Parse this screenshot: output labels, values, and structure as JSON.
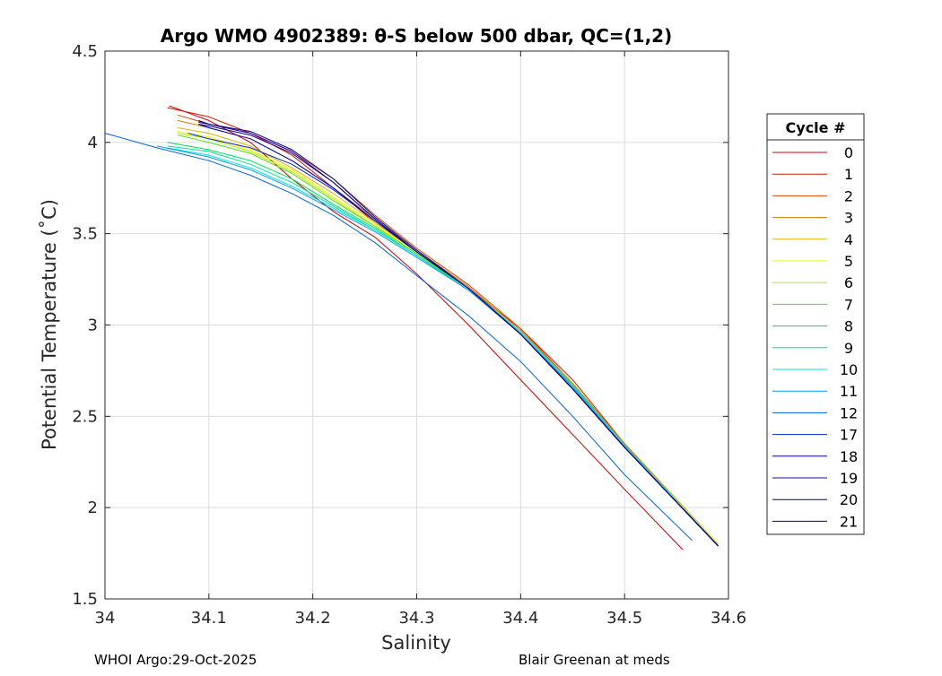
{
  "chart_data": {
    "type": "line",
    "title": "Argo WMO 4902389: θ-S below 500 dbar,  QC=(1,2)",
    "xlabel": "Salinity",
    "ylabel": "Potential Temperature (˚C)",
    "xlim": [
      34.0,
      34.6
    ],
    "ylim": [
      1.5,
      4.5
    ],
    "xticks": [
      34.0,
      34.1,
      34.2,
      34.3,
      34.4,
      34.5,
      34.6
    ],
    "xtick_labels": [
      "34",
      "34.1",
      "34.2",
      "34.3",
      "34.4",
      "34.5",
      "34.6"
    ],
    "yticks": [
      1.5,
      2.0,
      2.5,
      3.0,
      3.5,
      4.0,
      4.5
    ],
    "ytick_labels": [
      "1.5",
      "2",
      "2.5",
      "3",
      "3.5",
      "4",
      "4.5"
    ],
    "grid": true,
    "legend_title": "Cycle #",
    "legend_position": "outside-right",
    "series": [
      {
        "name": "0",
        "color": "#cc0000",
        "x": [
          34.062,
          34.1,
          34.14,
          34.18,
          34.22,
          34.26,
          34.3,
          34.35,
          34.4,
          34.45,
          34.5,
          34.556
        ],
        "y": [
          4.2,
          4.12,
          4.0,
          3.8,
          3.62,
          3.48,
          3.28,
          3.0,
          2.7,
          2.4,
          2.1,
          1.77
        ]
      },
      {
        "name": "1",
        "color": "#d91400",
        "x": [
          34.06,
          34.1,
          34.14,
          34.18,
          34.22,
          34.26,
          34.3,
          34.35,
          34.4,
          34.45,
          34.5,
          34.59
        ],
        "y": [
          4.19,
          4.14,
          4.05,
          3.93,
          3.75,
          3.56,
          3.4,
          3.2,
          2.98,
          2.7,
          2.35,
          1.79
        ]
      },
      {
        "name": "2",
        "color": "#e04000",
        "x": [
          34.07,
          34.1,
          34.14,
          34.18,
          34.22,
          34.26,
          34.3,
          34.35,
          34.4,
          34.45,
          34.5,
          34.59
        ],
        "y": [
          4.15,
          4.1,
          4.05,
          3.95,
          3.8,
          3.6,
          3.42,
          3.22,
          2.98,
          2.68,
          2.35,
          1.8
        ]
      },
      {
        "name": "3",
        "color": "#e07800",
        "x": [
          34.07,
          34.1,
          34.14,
          34.18,
          34.22,
          34.26,
          34.3,
          34.35,
          34.4,
          34.45,
          34.5,
          34.59
        ],
        "y": [
          4.12,
          4.08,
          4.02,
          3.9,
          3.75,
          3.58,
          3.41,
          3.21,
          2.97,
          2.68,
          2.35,
          1.8
        ]
      },
      {
        "name": "4",
        "color": "#e0b400",
        "x": [
          34.07,
          34.1,
          34.14,
          34.18,
          34.22,
          34.26,
          34.3,
          34.35,
          34.4,
          34.45,
          34.5,
          34.59
        ],
        "y": [
          4.08,
          4.05,
          3.98,
          3.86,
          3.72,
          3.56,
          3.4,
          3.2,
          2.96,
          2.67,
          2.34,
          1.8
        ]
      },
      {
        "name": "5",
        "color": "#f0f000",
        "x": [
          34.07,
          34.1,
          34.14,
          34.18,
          34.22,
          34.26,
          34.3,
          34.35,
          34.4,
          34.45,
          34.5,
          34.59
        ],
        "y": [
          4.06,
          4.03,
          3.96,
          3.85,
          3.7,
          3.55,
          3.39,
          3.2,
          2.96,
          2.67,
          2.34,
          1.8
        ]
      },
      {
        "name": "6",
        "color": "#b4f000",
        "x": [
          34.07,
          34.1,
          34.14,
          34.18,
          34.22,
          34.26,
          34.3,
          34.35,
          34.4,
          34.45,
          34.5,
          34.59
        ],
        "y": [
          4.05,
          4.02,
          3.95,
          3.84,
          3.69,
          3.54,
          3.39,
          3.2,
          2.96,
          2.67,
          2.34,
          1.79
        ]
      },
      {
        "name": "7",
        "color": "#50e000",
        "x": [
          34.07,
          34.1,
          34.14,
          34.18,
          34.22,
          34.26,
          34.3,
          34.35,
          34.4,
          34.45,
          34.5,
          34.59
        ],
        "y": [
          4.04,
          4.0,
          3.94,
          3.83,
          3.68,
          3.54,
          3.39,
          3.2,
          2.96,
          2.67,
          2.34,
          1.79
        ]
      },
      {
        "name": "8",
        "color": "#00e050",
        "x": [
          34.06,
          34.1,
          34.14,
          34.18,
          34.22,
          34.26,
          34.3,
          34.35,
          34.4,
          34.45,
          34.5,
          34.59
        ],
        "y": [
          4.0,
          3.96,
          3.9,
          3.8,
          3.66,
          3.53,
          3.38,
          3.2,
          2.96,
          2.67,
          2.34,
          1.79
        ]
      },
      {
        "name": "9",
        "color": "#00e0a0",
        "x": [
          34.06,
          34.1,
          34.14,
          34.18,
          34.22,
          34.26,
          34.3,
          34.35,
          34.4,
          34.45,
          34.5,
          34.59
        ],
        "y": [
          3.98,
          3.95,
          3.88,
          3.78,
          3.65,
          3.52,
          3.38,
          3.19,
          2.96,
          2.67,
          2.34,
          1.79
        ]
      },
      {
        "name": "10",
        "color": "#00e0e0",
        "x": [
          34.06,
          34.1,
          34.14,
          34.18,
          34.22,
          34.26,
          34.3,
          34.35,
          34.4,
          34.45,
          34.5,
          34.59
        ],
        "y": [
          3.97,
          3.93,
          3.86,
          3.76,
          3.64,
          3.52,
          3.38,
          3.19,
          2.96,
          2.66,
          2.34,
          1.79
        ]
      },
      {
        "name": "11",
        "color": "#00a0f0",
        "x": [
          34.05,
          34.1,
          34.14,
          34.18,
          34.22,
          34.26,
          34.3,
          34.35,
          34.4,
          34.45,
          34.5,
          34.59
        ],
        "y": [
          3.98,
          3.92,
          3.85,
          3.75,
          3.63,
          3.51,
          3.37,
          3.19,
          2.95,
          2.66,
          2.33,
          1.79
        ]
      },
      {
        "name": "12",
        "color": "#0064e0",
        "x": [
          34.0,
          34.05,
          34.1,
          34.14,
          34.18,
          34.22,
          34.26,
          34.3,
          34.35,
          34.4,
          34.45,
          34.5,
          34.565
        ],
        "y": [
          4.05,
          3.97,
          3.9,
          3.82,
          3.72,
          3.6,
          3.45,
          3.27,
          3.05,
          2.8,
          2.5,
          2.18,
          1.82
        ]
      },
      {
        "name": "17",
        "color": "#0028d0",
        "x": [
          34.08,
          34.1,
          34.14,
          34.18,
          34.22,
          34.26,
          34.3,
          34.35,
          34.4,
          34.45,
          34.5,
          34.59
        ],
        "y": [
          4.05,
          4.02,
          3.97,
          3.88,
          3.74,
          3.57,
          3.4,
          3.2,
          2.95,
          2.65,
          2.33,
          1.79
        ]
      },
      {
        "name": "18",
        "color": "#0000c0",
        "x": [
          34.09,
          34.1,
          34.14,
          34.18,
          34.22,
          34.26,
          34.3,
          34.35,
          34.4,
          34.45,
          34.5,
          34.59
        ],
        "y": [
          4.1,
          4.08,
          4.02,
          3.9,
          3.75,
          3.57,
          3.4,
          3.2,
          2.95,
          2.65,
          2.33,
          1.79
        ]
      },
      {
        "name": "19",
        "color": "#2800a8",
        "x": [
          34.09,
          34.1,
          34.14,
          34.18,
          34.22,
          34.26,
          34.3,
          34.35,
          34.4,
          34.45,
          34.5,
          34.59
        ],
        "y": [
          4.11,
          4.1,
          4.05,
          3.95,
          3.78,
          3.58,
          3.4,
          3.2,
          2.95,
          2.65,
          2.33,
          1.79
        ]
      },
      {
        "name": "20",
        "color": "#000078",
        "x": [
          34.09,
          34.1,
          34.14,
          34.18,
          34.22,
          34.26,
          34.3,
          34.35,
          34.4,
          34.45,
          34.5,
          34.59
        ],
        "y": [
          4.12,
          4.1,
          4.06,
          3.96,
          3.8,
          3.59,
          3.41,
          3.2,
          2.95,
          2.65,
          2.33,
          1.79
        ]
      },
      {
        "name": "21",
        "color": "#000090",
        "x": [
          34.09,
          34.1,
          34.14,
          34.18,
          34.22,
          34.26,
          34.3,
          34.35,
          34.4,
          34.45,
          34.5,
          34.59
        ],
        "y": [
          4.1,
          4.09,
          4.04,
          3.94,
          3.78,
          3.58,
          3.4,
          3.2,
          2.95,
          2.65,
          2.33,
          1.79
        ]
      }
    ]
  },
  "footer": {
    "left": "WHOI Argo:29-Oct-2025",
    "right": "Blair Greenan at meds"
  }
}
